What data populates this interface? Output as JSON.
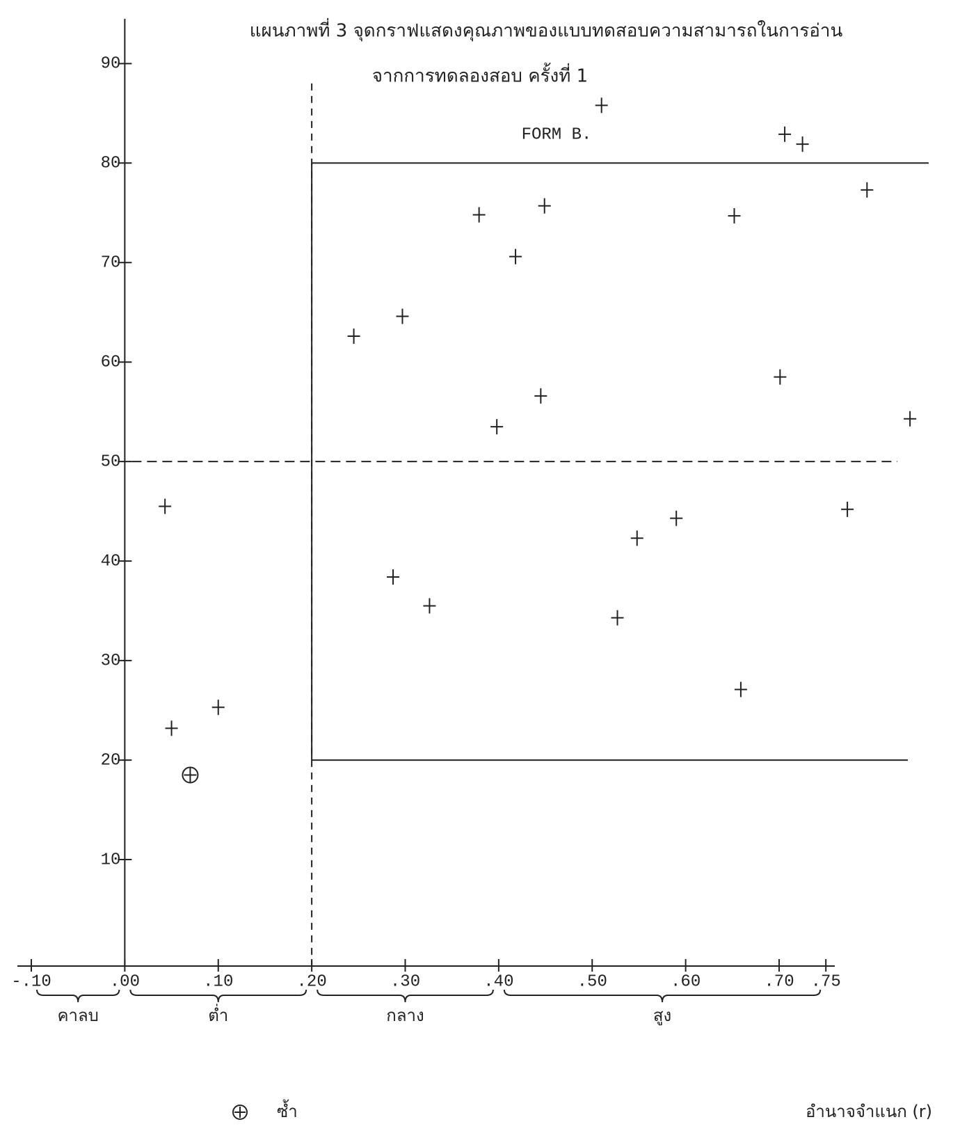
{
  "chart_data": {
    "type": "scatter",
    "title": "แผนภาพที่ 3  จุดกราฟแสดงคุณภาพของแบบทดสอบความสามารถในการอ่าน",
    "subtitle": "จากการทดลองสอบ ครั้งที่ 1",
    "annotation": "FORM B.",
    "x_label": "อำนาจจำแนก (r)",
    "xlim": [
      -0.1,
      0.86
    ],
    "ylim": [
      0,
      94.5
    ],
    "xticks": [
      {
        "value": -0.1,
        "label": "-.10"
      },
      {
        "value": 0,
        "label": ".00"
      },
      {
        "value": 0.1,
        "label": ".10"
      },
      {
        "value": 0.2,
        "label": ".20"
      },
      {
        "value": 0.3,
        "label": ".30"
      },
      {
        "value": 0.4,
        "label": ".40"
      },
      {
        "value": 0.5,
        "label": ".50"
      },
      {
        "value": 0.6,
        "label": ".60"
      },
      {
        "value": 0.7,
        "label": ".70"
      },
      {
        "value": 0.75,
        "label": ".75"
      }
    ],
    "yticks": [
      10,
      20,
      30,
      40,
      50,
      60,
      70,
      80,
      90
    ],
    "bands": [
      {
        "label": "คาลบ",
        "from": -0.1,
        "to": 0
      },
      {
        "label": "ต่ำ",
        "from": 0,
        "to": 0.2
      },
      {
        "label": "กลาง",
        "from": 0.2,
        "to": 0.4
      },
      {
        "label": "สูง",
        "from": 0.4,
        "to": 0.75
      }
    ],
    "box": {
      "x": 0.2,
      "y": [
        20,
        80
      ]
    },
    "dashed_lines": {
      "x": 0.2,
      "y": 50
    },
    "series": [
      {
        "x": [
          0.043,
          0.05,
          0.1,
          0.245,
          0.297,
          0.287,
          0.326,
          0.379,
          0.418,
          0.398,
          0.449,
          0.445,
          0.51,
          0.527,
          0.548,
          0.59,
          0.652,
          0.659,
          0.701,
          0.706,
          0.725,
          0.794,
          0.773,
          0.84
        ],
        "values": [
          45.5,
          23.2,
          25.3,
          62.6,
          64.6,
          38.4,
          35.5,
          74.8,
          70.6,
          53.5,
          75.7,
          56.6,
          85.8,
          34.3,
          42.3,
          44.3,
          74.7,
          27.1,
          58.5,
          82.9,
          81.9,
          77.3,
          45.2,
          54.3
        ]
      },
      {
        "name": "ซ้ำ",
        "x": [
          0.07
        ],
        "values": [
          18.5
        ]
      }
    ]
  }
}
